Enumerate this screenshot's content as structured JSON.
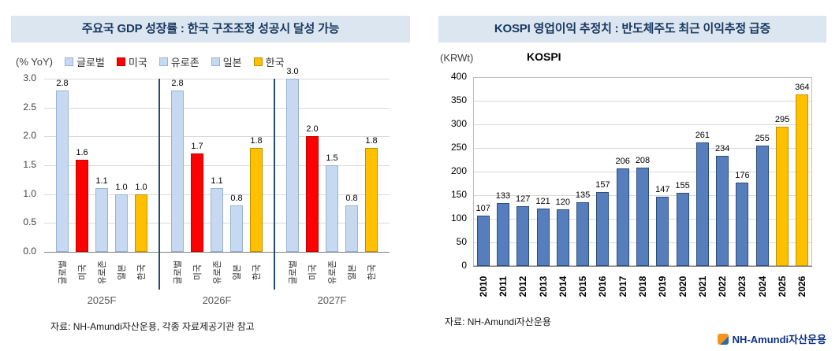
{
  "colors": {
    "banner_bg": "#dce6f1",
    "banner_text": "#17375e",
    "gridline": "#d9d9d9",
    "group_separator": "#1f4e6e"
  },
  "footer": {
    "logo_text": "NH-Amundi자산운용"
  },
  "chart_data": [
    {
      "type": "bar",
      "title": "주요국 GDP 성장률 : 한국 구조조정 성공시 달성 가능",
      "ylabel": "(% YoY)",
      "ylim": [
        0,
        3.0
      ],
      "yticks": [
        0,
        0.5,
        1.0,
        1.5,
        2.0,
        2.5,
        3.0
      ],
      "grid": true,
      "legend_position": "top",
      "groups": [
        "2025F",
        "2026F",
        "2027F"
      ],
      "series": [
        {
          "name": "글로벌",
          "color": "#c6d9f0",
          "border": "#95b3d7",
          "values": [
            2.8,
            2.8,
            3.0
          ]
        },
        {
          "name": "미국",
          "color": "#ff0000",
          "border": "#c00000",
          "values": [
            1.6,
            1.7,
            2.0
          ]
        },
        {
          "name": "유로존",
          "color": "#c6d9f0",
          "border": "#95b3d7",
          "values": [
            1.1,
            1.1,
            1.5
          ]
        },
        {
          "name": "일본",
          "color": "#c6d9f0",
          "border": "#95b3d7",
          "values": [
            1.0,
            0.8,
            0.8
          ]
        },
        {
          "name": "한국",
          "color": "#ffc000",
          "border": "#bf9000",
          "values": [
            1.0,
            1.8,
            1.8
          ]
        }
      ],
      "source": "자료: NH-Amundi자산운용, 각종 자료제공기관 참고"
    },
    {
      "type": "bar",
      "title": "KOSPI 영업이익 추정치 : 반도체주도 최근 이익추정 급증",
      "ylabel": "(KRWt)",
      "series_name": "KOSPI",
      "ylim": [
        0,
        400
      ],
      "yticks": [
        0,
        50,
        100,
        150,
        200,
        250,
        300,
        350,
        400
      ],
      "grid": true,
      "categories": [
        "2010",
        "2011",
        "2012",
        "2013",
        "2014",
        "2015",
        "2016",
        "2017",
        "2018",
        "2019",
        "2020",
        "2021",
        "2022",
        "2023",
        "2024",
        "2025",
        "2026"
      ],
      "values": [
        107,
        133,
        127,
        121,
        120,
        135,
        157,
        206,
        208,
        147,
        155,
        261,
        234,
        176,
        255,
        295,
        364
      ],
      "bar_color": "#567ebd",
      "bar_border": "#2c4d7c",
      "highlight_last_n": 2,
      "highlight_color": "#ffc000",
      "highlight_border": "#bf9000",
      "source": "자료: NH-Amundi자산운용"
    }
  ]
}
